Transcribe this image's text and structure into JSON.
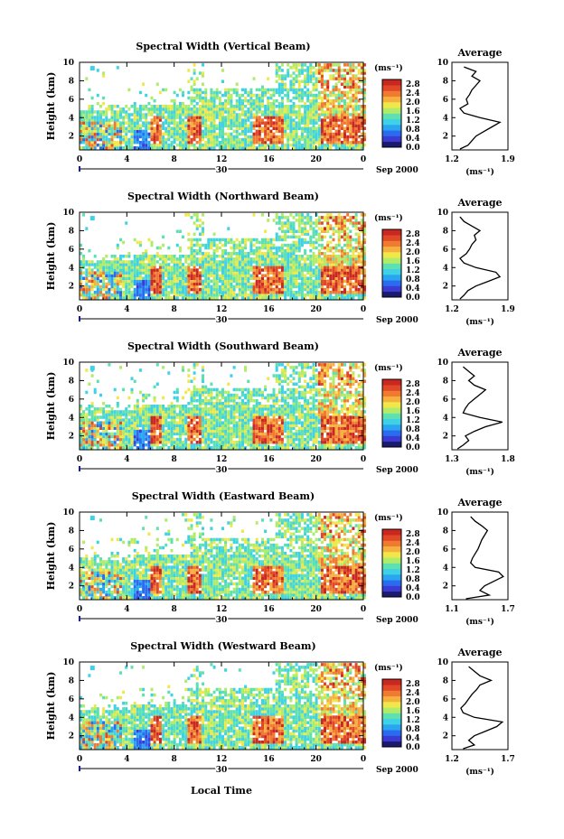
{
  "figure": {
    "xlabel": "Local Time",
    "date_label": "Sep 2000",
    "day_label": "30",
    "colors": [
      "#1a1a6e",
      "#3b3bd4",
      "#2a6cf0",
      "#2aa5f0",
      "#3fd2e6",
      "#5fe0b0",
      "#b0ec6a",
      "#f0e84a",
      "#f5b040",
      "#f07a30",
      "#e04828",
      "#c82820"
    ]
  },
  "chart_data": [
    {
      "type": "heatmap",
      "title": "Spectral Width (Vertical Beam)",
      "ylabel": "Height (km)",
      "xlim": [
        0,
        24
      ],
      "ylim": [
        0.5,
        10
      ],
      "xticks": [
        "0",
        "4",
        "8",
        "12",
        "16",
        "20",
        "0"
      ],
      "yticks": [
        "2",
        "4",
        "6",
        "8",
        "10"
      ],
      "colorbar": {
        "unit": "(ms⁻¹)",
        "ticks": [
          "0.0",
          "0.4",
          "0.8",
          "1.2",
          "1.6",
          "2.0",
          "2.4",
          "2.8"
        ],
        "range": [
          0,
          3.0
        ]
      },
      "profile": {
        "title": "Average",
        "unit": "(ms⁻¹)",
        "xticks": [
          "1.2",
          "1.9"
        ],
        "xlim": [
          1.2,
          1.9
        ],
        "heights": [
          0.6,
          1.0,
          1.5,
          2.0,
          2.5,
          3.0,
          3.5,
          4.0,
          4.5,
          5.0,
          5.5,
          6.0,
          6.5,
          7.0,
          7.5,
          8.0,
          8.5,
          9.0,
          9.5
        ],
        "values": [
          1.3,
          1.4,
          1.45,
          1.5,
          1.6,
          1.7,
          1.8,
          1.55,
          1.35,
          1.3,
          1.4,
          1.38,
          1.42,
          1.45,
          1.5,
          1.55,
          1.45,
          1.5,
          1.35
        ]
      }
    },
    {
      "type": "heatmap",
      "title": "Spectral Width (Northward Beam)",
      "ylabel": "Height (km)",
      "xlim": [
        0,
        24
      ],
      "ylim": [
        0.5,
        10
      ],
      "xticks": [
        "0",
        "4",
        "8",
        "12",
        "16",
        "20",
        "0"
      ],
      "yticks": [
        "2",
        "4",
        "6",
        "8",
        "10"
      ],
      "colorbar": {
        "unit": "(ms⁻¹)",
        "ticks": [
          "0.0",
          "0.4",
          "0.8",
          "1.2",
          "1.6",
          "2.0",
          "2.4",
          "2.8"
        ],
        "range": [
          0,
          3.0
        ]
      },
      "profile": {
        "title": "Average",
        "unit": "(ms⁻¹)",
        "xticks": [
          "1.2",
          "1.9"
        ],
        "xlim": [
          1.2,
          1.9
        ],
        "heights": [
          0.6,
          1.0,
          1.5,
          2.0,
          2.5,
          3.0,
          3.5,
          4.0,
          4.5,
          5.0,
          5.5,
          6.0,
          6.5,
          7.0,
          7.5,
          8.0,
          8.5,
          9.0,
          9.5
        ],
        "values": [
          1.3,
          1.35,
          1.4,
          1.5,
          1.65,
          1.8,
          1.75,
          1.5,
          1.35,
          1.3,
          1.38,
          1.42,
          1.45,
          1.5,
          1.48,
          1.55,
          1.45,
          1.35,
          1.3
        ]
      }
    },
    {
      "type": "heatmap",
      "title": "Spectral Width (Southward Beam)",
      "ylabel": "Height (km)",
      "xlim": [
        0,
        24
      ],
      "ylim": [
        0.5,
        10
      ],
      "xticks": [
        "0",
        "4",
        "8",
        "12",
        "16",
        "20",
        "0"
      ],
      "yticks": [
        "2",
        "4",
        "6",
        "8",
        "10"
      ],
      "colorbar": {
        "unit": "(ms⁻¹)",
        "ticks": [
          "0.0",
          "0.4",
          "0.8",
          "1.2",
          "1.6",
          "2.0",
          "2.4",
          "2.8"
        ],
        "range": [
          0,
          3.0
        ]
      },
      "profile": {
        "title": "Average",
        "unit": "(ms⁻¹)",
        "xticks": [
          "1.3",
          "1.8"
        ],
        "xlim": [
          1.3,
          1.8
        ],
        "heights": [
          0.6,
          1.0,
          1.5,
          2.0,
          2.5,
          3.0,
          3.5,
          4.0,
          4.5,
          5.0,
          5.5,
          6.0,
          6.5,
          7.0,
          7.5,
          8.0,
          8.5,
          9.0,
          9.5
        ],
        "values": [
          1.35,
          1.4,
          1.45,
          1.42,
          1.5,
          1.6,
          1.75,
          1.55,
          1.4,
          1.42,
          1.45,
          1.5,
          1.55,
          1.6,
          1.5,
          1.45,
          1.5,
          1.45,
          1.4
        ]
      }
    },
    {
      "type": "heatmap",
      "title": "Spectral Width (Eastward Beam)",
      "ylabel": "Height (km)",
      "xlim": [
        0,
        24
      ],
      "ylim": [
        0.5,
        10
      ],
      "xticks": [
        "0",
        "4",
        "8",
        "12",
        "16",
        "20",
        "0"
      ],
      "yticks": [
        "2",
        "4",
        "6",
        "8",
        "10"
      ],
      "colorbar": {
        "unit": "(ms⁻¹)",
        "ticks": [
          "0.0",
          "0.4",
          "0.8",
          "1.2",
          "1.6",
          "2.0",
          "2.4",
          "2.8"
        ],
        "range": [
          0,
          3.0
        ]
      },
      "profile": {
        "title": "Average",
        "unit": "(ms⁻¹)",
        "xticks": [
          "1.1",
          "1.7"
        ],
        "xlim": [
          1.1,
          1.7
        ],
        "heights": [
          0.6,
          1.0,
          1.5,
          2.0,
          2.5,
          3.0,
          3.5,
          4.0,
          4.5,
          5.0,
          5.5,
          6.0,
          6.5,
          7.0,
          7.5,
          8.0,
          8.5,
          9.0,
          9.5
        ],
        "values": [
          1.25,
          1.5,
          1.4,
          1.45,
          1.55,
          1.65,
          1.6,
          1.35,
          1.3,
          1.32,
          1.35,
          1.38,
          1.4,
          1.42,
          1.45,
          1.48,
          1.42,
          1.35,
          1.3
        ]
      }
    },
    {
      "type": "heatmap",
      "title": "Spectral Width (Westward Beam)",
      "ylabel": "Height (km)",
      "xlim": [
        0,
        24
      ],
      "ylim": [
        0.5,
        10
      ],
      "xticks": [
        "0",
        "4",
        "8",
        "12",
        "16",
        "20",
        "0"
      ],
      "yticks": [
        "2",
        "4",
        "6",
        "8",
        "10"
      ],
      "colorbar": {
        "unit": "(ms⁻¹)",
        "ticks": [
          "0.0",
          "0.4",
          "0.8",
          "1.2",
          "1.6",
          "2.0",
          "2.4",
          "2.8"
        ],
        "range": [
          0,
          3.0
        ]
      },
      "profile": {
        "title": "Average",
        "unit": "(ms⁻¹)",
        "xticks": [
          "1.2",
          "1.7"
        ],
        "xlim": [
          1.2,
          1.7
        ],
        "heights": [
          0.6,
          1.0,
          1.5,
          2.0,
          2.5,
          3.0,
          3.5,
          4.0,
          4.5,
          5.0,
          5.5,
          6.0,
          6.5,
          7.0,
          7.5,
          8.0,
          8.5,
          9.0,
          9.5
        ],
        "values": [
          1.3,
          1.4,
          1.35,
          1.4,
          1.5,
          1.6,
          1.65,
          1.4,
          1.3,
          1.28,
          1.32,
          1.35,
          1.38,
          1.42,
          1.45,
          1.55,
          1.45,
          1.4,
          1.35
        ]
      }
    }
  ]
}
